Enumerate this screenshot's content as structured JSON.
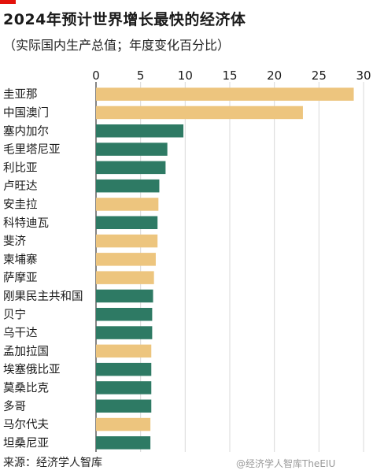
{
  "header": {
    "title": "2024年预计世界增长最快的经济体",
    "subtitle": "（实际国内生产总值；年度变化百分比）"
  },
  "footer": {
    "source": "来源：经济学人智库",
    "watermark": "@经济学人智库TheEIU"
  },
  "colors": {
    "accent": "#e3120b",
    "tan": "#edc57e",
    "green": "#2e7a64",
    "grid": "#d9d9d9",
    "axis": "#333333"
  },
  "chart_data": {
    "type": "bar",
    "orientation": "horizontal",
    "title": "2024年预计世界增长最快的经济体",
    "subtitle": "（实际国内生产总值；年度变化百分比）",
    "xlim": [
      0,
      30
    ],
    "xticks": [
      0,
      5,
      10,
      15,
      20,
      25,
      30
    ],
    "grid": true,
    "categories": [
      "圭亚那",
      "中国澳门",
      "塞内加尔",
      "毛里塔尼亚",
      "利比亚",
      "卢旺达",
      "安圭拉",
      "科特迪瓦",
      "斐济",
      "柬埔寨",
      "萨摩亚",
      "刚果民主共和国",
      "贝宁",
      "乌干达",
      "孟加拉国",
      "埃塞俄比亚",
      "莫桑比克",
      "多哥",
      "马尔代夫",
      "坦桑尼亚"
    ],
    "values": [
      28.9,
      23.2,
      9.8,
      8.0,
      7.8,
      7.1,
      7.0,
      6.9,
      6.9,
      6.7,
      6.5,
      6.4,
      6.3,
      6.3,
      6.2,
      6.2,
      6.2,
      6.2,
      6.1,
      6.1
    ],
    "bar_colors": [
      "tan",
      "tan",
      "green",
      "green",
      "green",
      "green",
      "tan",
      "green",
      "tan",
      "tan",
      "tan",
      "green",
      "green",
      "green",
      "tan",
      "green",
      "green",
      "green",
      "tan",
      "green"
    ]
  }
}
